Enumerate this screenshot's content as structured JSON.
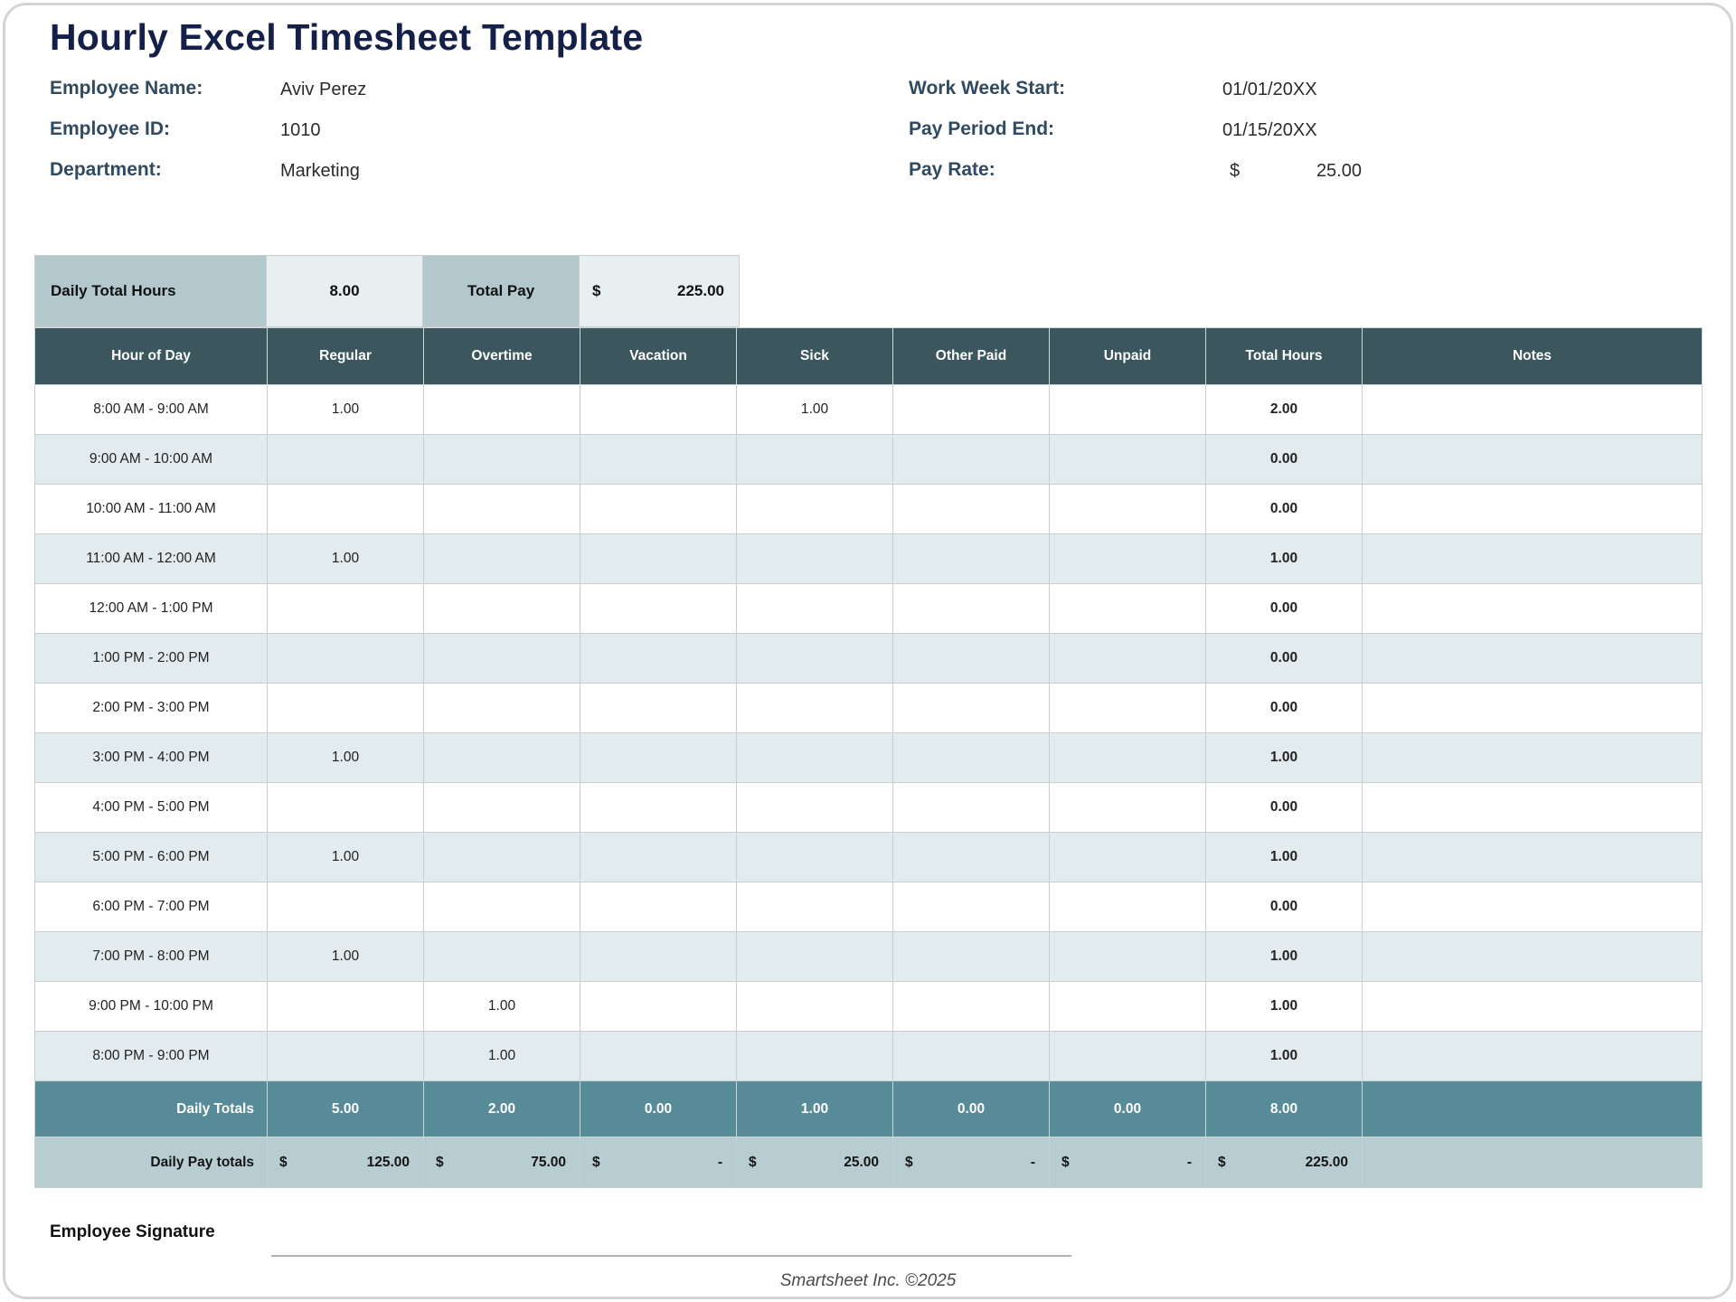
{
  "page": {
    "title": "Hourly Excel Timesheet Template",
    "signature_label": "Employee Signature",
    "footer_credit": "Smartsheet Inc. ©2025"
  },
  "info": {
    "left": [
      {
        "label": "Employee Name:",
        "value": "Aviv Perez"
      },
      {
        "label": "Employee ID:",
        "value": "1010"
      },
      {
        "label": "Department:",
        "value": "Marketing"
      }
    ],
    "right": [
      {
        "label": "Work Week Start:",
        "value": "01/01/20XX"
      },
      {
        "label": "Pay Period End:",
        "value": "01/15/20XX"
      },
      {
        "label": "Pay Rate:",
        "currency": "$",
        "value": "25.00"
      }
    ]
  },
  "summary": {
    "daily_total_hours_label": "Daily Total Hours",
    "daily_total_hours_value": "8.00",
    "total_pay_label": "Total Pay",
    "total_pay_currency": "$",
    "total_pay_value": "225.00"
  },
  "table": {
    "columns": [
      "Hour of Day",
      "Regular",
      "Overtime",
      "Vacation",
      "Sick",
      "Other Paid",
      "Unpaid",
      "Total Hours",
      "Notes"
    ],
    "rows": [
      {
        "cells": [
          "8:00 AM - 9:00 AM",
          "1.00",
          "",
          "",
          "1.00",
          "",
          "",
          "2.00",
          ""
        ]
      },
      {
        "cells": [
          "9:00 AM - 10:00 AM",
          "",
          "",
          "",
          "",
          "",
          "",
          "0.00",
          ""
        ]
      },
      {
        "cells": [
          "10:00 AM - 11:00 AM",
          "",
          "",
          "",
          "",
          "",
          "",
          "0.00",
          ""
        ]
      },
      {
        "cells": [
          "11:00 AM - 12:00 AM",
          "1.00",
          "",
          "",
          "",
          "",
          "",
          "1.00",
          ""
        ]
      },
      {
        "cells": [
          "12:00 AM - 1:00 PM",
          "",
          "",
          "",
          "",
          "",
          "",
          "0.00",
          ""
        ]
      },
      {
        "cells": [
          "1:00 PM - 2:00 PM",
          "",
          "",
          "",
          "",
          "",
          "",
          "0.00",
          ""
        ]
      },
      {
        "cells": [
          "2:00 PM - 3:00 PM",
          "",
          "",
          "",
          "",
          "",
          "",
          "0.00",
          ""
        ]
      },
      {
        "cells": [
          "3:00 PM - 4:00 PM",
          "1.00",
          "",
          "",
          "",
          "",
          "",
          "1.00",
          ""
        ]
      },
      {
        "cells": [
          "4:00 PM - 5:00 PM",
          "",
          "",
          "",
          "",
          "",
          "",
          "0.00",
          ""
        ]
      },
      {
        "cells": [
          "5:00 PM - 6:00 PM",
          "1.00",
          "",
          "",
          "",
          "",
          "",
          "1.00",
          ""
        ]
      },
      {
        "cells": [
          "6:00 PM - 7:00 PM",
          "",
          "",
          "",
          "",
          "",
          "",
          "0.00",
          ""
        ]
      },
      {
        "cells": [
          "7:00 PM - 8:00 PM",
          "1.00",
          "",
          "",
          "",
          "",
          "",
          "1.00",
          ""
        ]
      },
      {
        "cells": [
          "9:00 PM - 10:00 PM",
          "",
          "1.00",
          "",
          "",
          "",
          "",
          "1.00",
          ""
        ]
      },
      {
        "cells": [
          "8:00 PM - 9:00 PM",
          "",
          "1.00",
          "",
          "",
          "",
          "",
          "1.00",
          ""
        ]
      }
    ],
    "daily_totals": {
      "label": "Daily Totals",
      "values": [
        "5.00",
        "2.00",
        "0.00",
        "1.00",
        "0.00",
        "0.00",
        "8.00"
      ]
    },
    "daily_pay_totals": {
      "label": "Daily Pay totals",
      "values": [
        {
          "currency": "$",
          "amount": "125.00"
        },
        {
          "currency": "$",
          "amount": "75.00"
        },
        {
          "currency": "$",
          "amount": "-"
        },
        {
          "currency": "$",
          "amount": "25.00"
        },
        {
          "currency": "$",
          "amount": "-"
        },
        {
          "currency": "$",
          "amount": "-"
        },
        {
          "currency": "$",
          "amount": "225.00"
        }
      ]
    }
  },
  "colors": {
    "title_navy": "#152049",
    "label_slate": "#2f4a61",
    "header_teal": "#3c565e",
    "totals_teal": "#578b97",
    "pay_band_blue": "#b7cdd2",
    "summary_label_bg": "#b3c8cd",
    "summary_value_bg": "#e7eff1",
    "alt_row_blue": "#e2ebee",
    "gridline_gray": "#c9ced0"
  }
}
